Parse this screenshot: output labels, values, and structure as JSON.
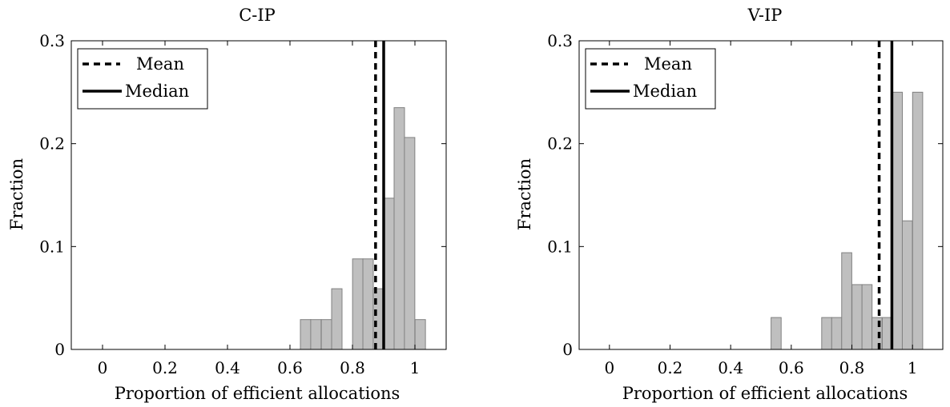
{
  "chart_data": [
    {
      "type": "bar",
      "title": "C-IP",
      "xlabel": "Proportion of efficient allocations",
      "ylabel": "Fraction",
      "xlim": [
        -0.1,
        1.1
      ],
      "ylim": [
        0,
        0.3
      ],
      "xticks": [
        "0",
        "0.2",
        "0.4",
        "0.6",
        "0.8",
        "1"
      ],
      "xtick_values": [
        0,
        0.2,
        0.4,
        0.6,
        0.8,
        1
      ],
      "yticks": [
        "0",
        "0.1",
        "0.2",
        "0.3"
      ],
      "ytick_values": [
        0,
        0.1,
        0.2,
        0.3
      ],
      "bin_width": 0.0333,
      "bins": [
        {
          "x": 0.65,
          "value": 0.029
        },
        {
          "x": 0.683,
          "value": 0.029
        },
        {
          "x": 0.717,
          "value": 0.029
        },
        {
          "x": 0.75,
          "value": 0.059
        },
        {
          "x": 0.817,
          "value": 0.088
        },
        {
          "x": 0.85,
          "value": 0.088
        },
        {
          "x": 0.883,
          "value": 0.059
        },
        {
          "x": 0.917,
          "value": 0.147
        },
        {
          "x": 0.95,
          "value": 0.235
        },
        {
          "x": 0.983,
          "value": 0.206
        },
        {
          "x": 1.017,
          "value": 0.029
        }
      ],
      "mean": 0.874,
      "median": 0.9,
      "legend": {
        "position": "top-left",
        "mean_label": "Mean",
        "median_label": "Median"
      },
      "grid": false,
      "bar_color": "#bfbfbf"
    },
    {
      "type": "bar",
      "title": "V-IP",
      "xlabel": "Proportion of efficient allocations",
      "ylabel": "Fraction",
      "xlim": [
        -0.1,
        1.1
      ],
      "ylim": [
        0,
        0.3
      ],
      "xticks": [
        "0",
        "0.2",
        "0.4",
        "0.6",
        "0.8",
        "1"
      ],
      "xtick_values": [
        0,
        0.2,
        0.4,
        0.6,
        0.8,
        1
      ],
      "yticks": [
        "0",
        "0.1",
        "0.2",
        "0.3"
      ],
      "ytick_values": [
        0,
        0.1,
        0.2,
        0.3
      ],
      "bin_width": 0.0333,
      "bins": [
        {
          "x": 0.55,
          "value": 0.031
        },
        {
          "x": 0.717,
          "value": 0.031
        },
        {
          "x": 0.75,
          "value": 0.031
        },
        {
          "x": 0.783,
          "value": 0.094
        },
        {
          "x": 0.817,
          "value": 0.063
        },
        {
          "x": 0.85,
          "value": 0.063
        },
        {
          "x": 0.883,
          "value": 0.031
        },
        {
          "x": 0.917,
          "value": 0.031
        },
        {
          "x": 0.95,
          "value": 0.25
        },
        {
          "x": 0.983,
          "value": 0.125
        },
        {
          "x": 1.017,
          "value": 0.25
        }
      ],
      "mean": 0.89,
      "median": 0.932,
      "legend": {
        "position": "top-left",
        "mean_label": "Mean",
        "median_label": "Median"
      },
      "grid": false,
      "bar_color": "#bfbfbf"
    }
  ]
}
